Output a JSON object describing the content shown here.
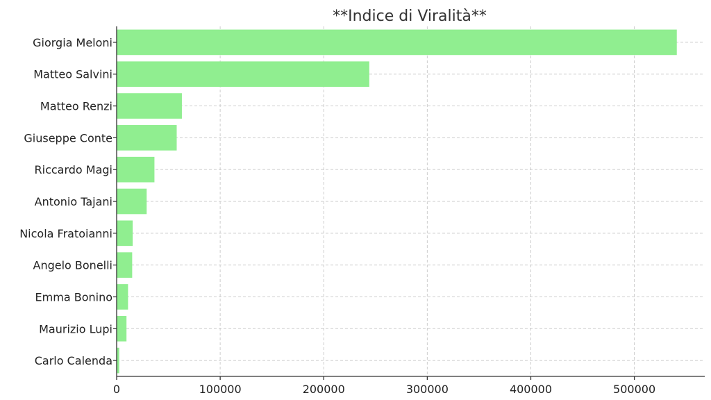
{
  "chart_data": {
    "type": "bar",
    "orientation": "horizontal",
    "title": "**Indice di Viralità**",
    "xlabel": "",
    "ylabel": "",
    "categories": [
      "Giorgia Meloni",
      "Matteo Salvini",
      "Matteo Renzi",
      "Giuseppe Conte",
      "Riccardo Magi",
      "Antonio Tajani",
      "Nicola Fratoianni",
      "Angelo Bonelli",
      "Emma Bonino",
      "Maurizio Lupi",
      "Carlo Calenda"
    ],
    "values": [
      541000,
      244000,
      63000,
      58000,
      36500,
      29000,
      15500,
      15000,
      11000,
      9500,
      2500
    ],
    "xlim": [
      0,
      568000
    ],
    "xticks": [
      0,
      100000,
      200000,
      300000,
      400000,
      500000
    ],
    "xtick_labels": [
      "0",
      "100000",
      "200000",
      "300000",
      "400000",
      "500000"
    ],
    "grid": true,
    "bar_color": "#90ee90"
  }
}
